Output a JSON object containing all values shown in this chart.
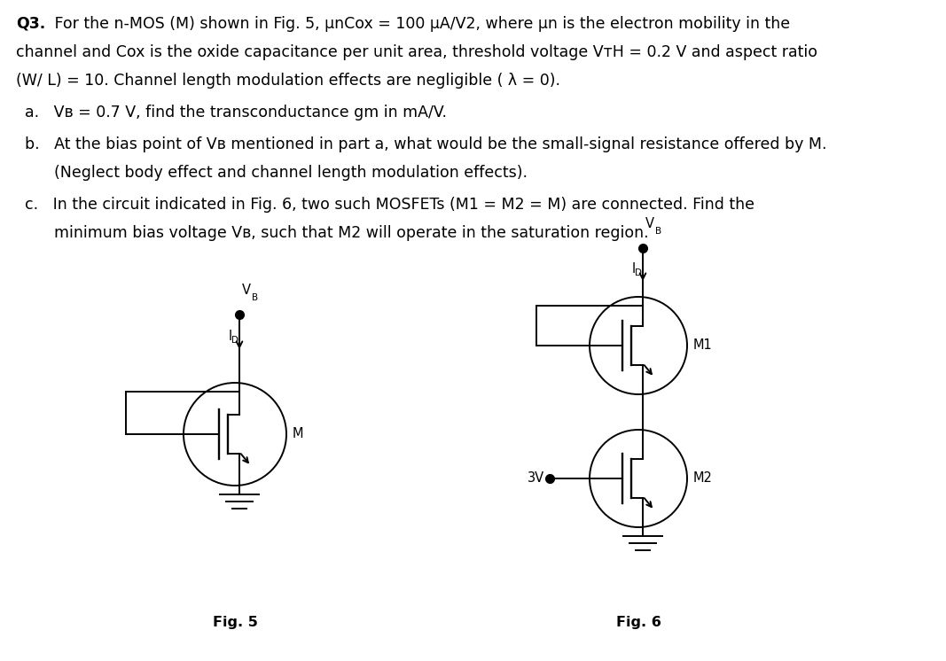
{
  "bg_color": "#ffffff",
  "text_color": "#000000",
  "title_bold": "Q3.",
  "title_text": " For the n-MOS (M) shown in Fig. 5, μnCox = 100 μA/V2, where μn is the electron mobility in the",
  "line2": "channel and Cox is the oxide capacitance per unit area, threshold voltage VᴛH = 0.2 V and aspect ratio",
  "line3": "(W/ L) = 10. Channel length modulation effects are negligible ( λ = 0).",
  "item_a": "a.   Vʙ = 0.7 V, find the transconductance gm in mA/V.",
  "item_b": "b.   At the bias point of Vʙ mentioned in part a, what would be the small-signal resistance offered by M.",
  "item_b2": "      (Neglect body effect and channel length modulation effects).",
  "item_c": "c.   In the circuit indicated in Fig. 6, two such MOSFETs (M1 = M2 = M) are connected. Find the",
  "item_c2": "      minimum bias voltage Vʙ, such that M2 will operate in the saturation region.",
  "fig5_label": "Fig. 5",
  "fig6_label": "Fig. 6",
  "fig5_VB": "V",
  "fig5_VB_sub": "B",
  "fig5_ID": "I",
  "fig5_ID_sub": "D",
  "fig5_M": "M",
  "fig6_VB": "V",
  "fig6_VB_sub": "B",
  "fig6_ID": "I",
  "fig6_ID_sub": "D",
  "fig6_M1": "M1",
  "fig6_M2": "M2",
  "fig6_3V": "3V",
  "font_size_main": 12.5,
  "font_size_circuit": 10.5,
  "font_size_fig": 11.5
}
